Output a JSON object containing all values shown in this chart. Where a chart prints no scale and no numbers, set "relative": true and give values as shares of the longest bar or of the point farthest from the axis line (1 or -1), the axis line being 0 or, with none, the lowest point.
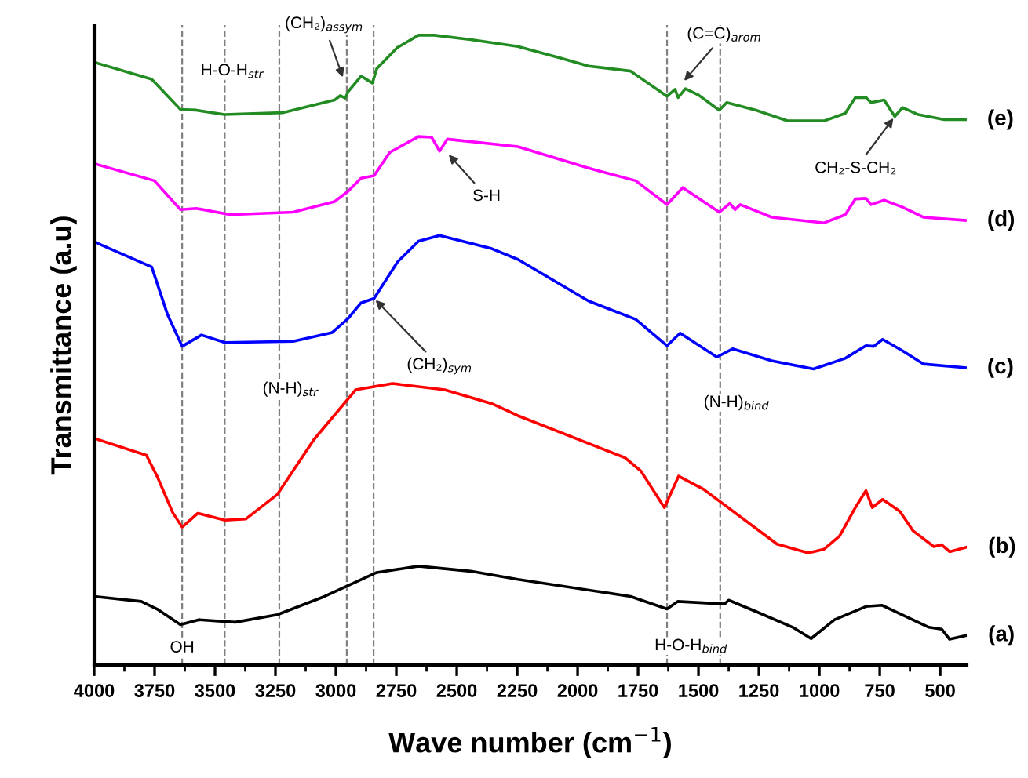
{
  "chart_data": {
    "type": "line",
    "relative": true,
    "xlabel": "Wave number (cm$^{−1}$)",
    "ylabel": "Transmittance (a.u)",
    "xlim": [
      4000,
      390
    ],
    "xticks": [
      4000,
      {
        "value": 3875,
        "label": null
      },
      3750,
      {
        "value": 3625,
        "label": null
      },
      3500,
      {
        "value": 3375,
        "label": null
      },
      3250,
      {
        "value": 3125,
        "label": null
      },
      3000,
      {
        "value": 2875,
        "label": null
      },
      2750,
      {
        "value": 2625,
        "label": null
      },
      2500,
      {
        "value": 2375,
        "label": null
      },
      2250,
      {
        "value": 2125,
        "label": null
      },
      2000,
      {
        "value": 1875,
        "label": null
      },
      1750,
      {
        "value": 1625,
        "label": null
      },
      1500,
      {
        "value": 1375,
        "label": null
      },
      1250,
      {
        "value": 1125,
        "label": null
      },
      1000,
      {
        "value": 875,
        "label": null
      },
      750,
      {
        "value": 625,
        "label": null
      },
      500
    ],
    "grid": false,
    "legend": false,
    "marker": "none",
    "line_style": "solid",
    "series": [
      {
        "name": "(a)",
        "color": "#000000",
        "x": [
          4000,
          3805,
          3740,
          3643,
          3567,
          3416,
          3242,
          3047,
          2831,
          2658,
          2442,
          2247,
          1781,
          1630,
          1586,
          1392,
          1375,
          1262,
          1110,
          1034,
          937,
          807,
          742,
          547,
          494,
          461,
          392
        ],
        "values": [
          0.109,
          0.101,
          0.089,
          0.064,
          0.072,
          0.068,
          0.08,
          0.109,
          0.147,
          0.157,
          0.149,
          0.136,
          0.109,
          0.089,
          0.101,
          0.097,
          0.103,
          0.085,
          0.06,
          0.042,
          0.072,
          0.093,
          0.095,
          0.06,
          0.057,
          0.041,
          0.047
        ]
      },
      {
        "name": "(b)",
        "color": "#ff0000",
        "x": [
          4000,
          3784,
          3740,
          3675,
          3636,
          3571,
          3459,
          3372,
          3242,
          3091,
          2918,
          2766,
          2550,
          2355,
          2247,
          1803,
          1738,
          1641,
          1582,
          1479,
          1175,
          1045,
          980,
          916,
          851,
          807,
          781,
          738,
          667,
          612,
          526,
          494,
          461,
          392
        ],
        "values": [
          0.36,
          0.333,
          0.3,
          0.242,
          0.219,
          0.241,
          0.23,
          0.232,
          0.271,
          0.358,
          0.437,
          0.447,
          0.437,
          0.415,
          0.396,
          0.329,
          0.308,
          0.25,
          0.3,
          0.279,
          0.192,
          0.178,
          0.184,
          0.205,
          0.25,
          0.277,
          0.25,
          0.263,
          0.244,
          0.213,
          0.188,
          0.191,
          0.18,
          0.187
        ]
      },
      {
        "name": "(c)",
        "color": "#0000ff",
        "x": [
          4000,
          3762,
          3697,
          3636,
          3556,
          3459,
          3177,
          3015,
          2950,
          2896,
          2842,
          2745,
          2658,
          2571,
          2355,
          2247,
          1955,
          1760,
          1630,
          1576,
          1424,
          1359,
          1197,
          1024,
          893,
          807,
          775,
          738,
          656,
          570,
          396
        ],
        "values": [
          0.672,
          0.632,
          0.557,
          0.506,
          0.524,
          0.512,
          0.514,
          0.528,
          0.55,
          0.575,
          0.582,
          0.64,
          0.673,
          0.682,
          0.661,
          0.644,
          0.578,
          0.549,
          0.507,
          0.527,
          0.489,
          0.502,
          0.483,
          0.47,
          0.487,
          0.507,
          0.506,
          0.517,
          0.499,
          0.478,
          0.472
        ]
      },
      {
        "name": "(d)",
        "color": "#ff00ff",
        "x": [
          4000,
          3751,
          3643,
          3578,
          3437,
          3177,
          3005,
          2950,
          2896,
          2842,
          2777,
          2658,
          2604,
          2571,
          2539,
          2247,
          1955,
          1760,
          1630,
          1565,
          1414,
          1370,
          1349,
          1327,
          1197,
          980,
          893,
          851,
          807,
          786,
          732,
          656,
          570,
          396
        ],
        "values": [
          0.796,
          0.769,
          0.723,
          0.725,
          0.715,
          0.719,
          0.736,
          0.752,
          0.773,
          0.777,
          0.814,
          0.839,
          0.838,
          0.816,
          0.835,
          0.823,
          0.789,
          0.769,
          0.731,
          0.758,
          0.719,
          0.733,
          0.723,
          0.731,
          0.711,
          0.702,
          0.715,
          0.74,
          0.741,
          0.731,
          0.738,
          0.727,
          0.711,
          0.706
        ]
      },
      {
        "name": "(e)",
        "color": "#228b22",
        "x": [
          4000,
          3762,
          3643,
          3578,
          3461,
          3221,
          3006,
          2982,
          2961,
          2950,
          2896,
          2849,
          2831,
          2747,
          2658,
          2593,
          2442,
          2247,
          2065,
          1955,
          1781,
          1630,
          1597,
          1584,
          1554,
          1500,
          1414,
          1383,
          1262,
          1132,
          980,
          893,
          851,
          807,
          786,
          732,
          688,
          656,
          591,
          483,
          396
        ],
        "values": [
          0.957,
          0.93,
          0.882,
          0.881,
          0.874,
          0.877,
          0.897,
          0.904,
          0.9,
          0.91,
          0.935,
          0.924,
          0.947,
          0.98,
          1,
          1,
          0.993,
          0.982,
          0.963,
          0.951,
          0.943,
          0.903,
          0.914,
          0.901,
          0.915,
          0.905,
          0.881,
          0.893,
          0.881,
          0.864,
          0.864,
          0.876,
          0.901,
          0.901,
          0.893,
          0.897,
          0.871,
          0.885,
          0.874,
          0.866,
          0.866
        ]
      }
    ],
    "ref_lines": [
      {
        "axis": "x",
        "value": 3636,
        "color": "#808080",
        "line_style": "dashed"
      },
      {
        "axis": "x",
        "value": 3460,
        "color": "#808080",
        "line_style": "dashed"
      },
      {
        "axis": "x",
        "value": 3234,
        "color": "#808080",
        "line_style": "dashed"
      },
      {
        "axis": "x",
        "value": 2955,
        "color": "#808080",
        "line_style": "dashed"
      },
      {
        "axis": "x",
        "value": 2844,
        "color": "#808080",
        "line_style": "dashed"
      },
      {
        "axis": "x",
        "value": 1630,
        "color": "#808080",
        "line_style": "dashed"
      },
      {
        "axis": "x",
        "value": 1410,
        "color": "#808080",
        "line_style": "dashed"
      }
    ],
    "annotations": [
      {
        "text": "OH",
        "x": 3636,
        "y": 0.027
      },
      {
        "text": "H-O-H$_{str}$",
        "x": 3429,
        "y": 0.943
      },
      {
        "text": "(N-H)$_{str}$",
        "x": 3188,
        "y": 0.438
      },
      {
        "text": "H-O-H$_{bind}$",
        "x": 1630,
        "y": 0.089
      },
      {
        "text": "(N-H)$_{bind}$",
        "x": 1424,
        "y": 0.489
      },
      {
        "text": "(CH₂)$_{assym}$",
        "x": 2968,
        "y": 0.93
      },
      {
        "text": "(CH₂)$_{sym}$",
        "x": 2842,
        "y": 0.582
      },
      {
        "text": "S-H",
        "x": 2539,
        "y": 0.813
      },
      {
        "text": "(C=C)$_{arom}$",
        "x": 1565,
        "y": 0.925
      },
      {
        "text": "CH₂-S-CH₂",
        "x": 688,
        "y": 0.871
      }
    ]
  }
}
